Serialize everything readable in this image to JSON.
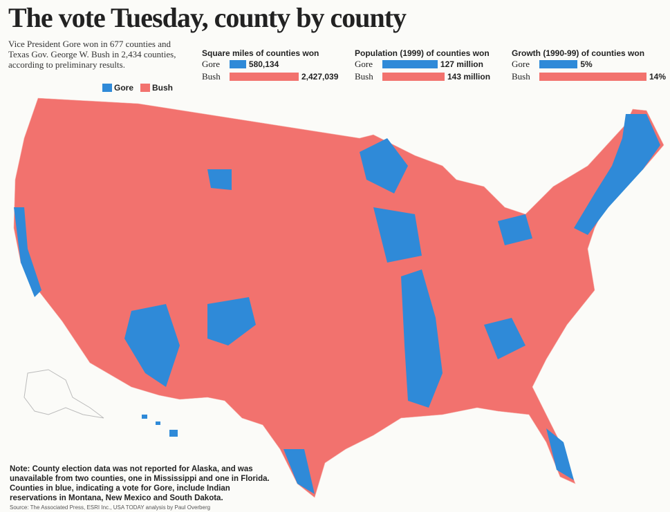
{
  "header": {
    "title": "The vote Tuesday, county by county",
    "intro": "Vice President Gore won in 677 counties and Texas Gov. George W. Bush in 2,434 counties, according to preliminary results."
  },
  "legend": {
    "items": [
      {
        "label": "Gore",
        "color": "#2f8ad8"
      },
      {
        "label": "Bush",
        "color": "#f2726e"
      }
    ]
  },
  "charts": [
    {
      "title": "Square miles of counties won",
      "categories": [
        "Gore",
        "Bush"
      ],
      "values": [
        580134,
        2427039
      ],
      "value_labels": [
        "580,134",
        "2,427,039"
      ],
      "colors": [
        "#2f8ad8",
        "#f2726e"
      ]
    },
    {
      "title": "Population (1999) of counties won",
      "categories": [
        "Gore",
        "Bush"
      ],
      "values": [
        127,
        143
      ],
      "value_labels": [
        "127 million",
        "143 million"
      ],
      "colors": [
        "#2f8ad8",
        "#f2726e"
      ]
    },
    {
      "title": "Growth (1990-99) of counties won",
      "categories": [
        "Gore",
        "Bush"
      ],
      "values": [
        5,
        14
      ],
      "value_labels": [
        "5%",
        "14%"
      ],
      "colors": [
        "#2f8ad8",
        "#f2726e"
      ]
    }
  ],
  "note": "Note: County election data was not reported for Alaska, and was unavailable from two counties, one in Mississippi and one in Florida. Counties in blue, indicating a vote for Gore, include Indian reservations in Montana, New Mexico and South Dakota.",
  "source": "Source: The Associated Press, ESRI Inc., USA TODAY analysis by Paul Overberg"
}
